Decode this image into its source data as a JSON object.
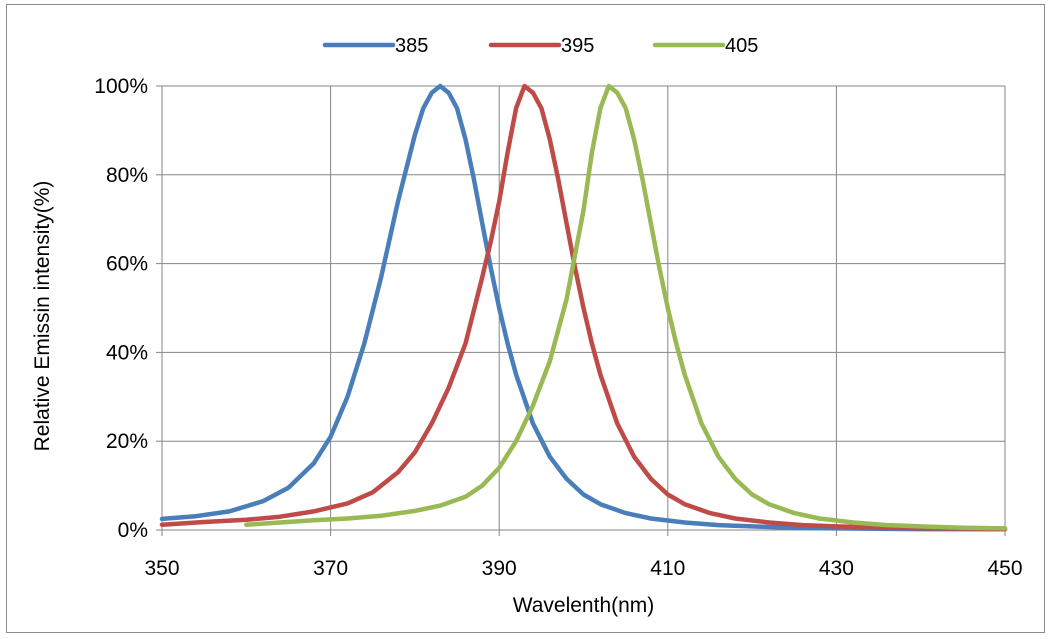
{
  "chart_data": {
    "type": "line",
    "title": "",
    "xlabel": "Wavelenth(nm)",
    "ylabel": "Relative Emissin intensity(%)",
    "xlim": [
      350,
      450
    ],
    "ylim": [
      0,
      100
    ],
    "x_ticks": [
      350,
      370,
      390,
      410,
      430,
      450
    ],
    "x_tick_labels": [
      "350",
      "370",
      "390",
      "410",
      "430",
      "450"
    ],
    "y_ticks": [
      0,
      20,
      40,
      60,
      80,
      100
    ],
    "y_tick_labels": [
      "0%",
      "20%",
      "40%",
      "60%",
      "80%",
      "100%"
    ],
    "grid": true,
    "legend_position": "top",
    "series": [
      {
        "name": "385",
        "color": "#4a7ebb",
        "points": [
          [
            350,
            2.5
          ],
          [
            354,
            3.1
          ],
          [
            358,
            4.2
          ],
          [
            362,
            6.5
          ],
          [
            365,
            9.5
          ],
          [
            368,
            15
          ],
          [
            370,
            21
          ],
          [
            372,
            30
          ],
          [
            374,
            42
          ],
          [
            376,
            57
          ],
          [
            378,
            74
          ],
          [
            380,
            89
          ],
          [
            381,
            95
          ],
          [
            382,
            98.5
          ],
          [
            383,
            100
          ],
          [
            384,
            98.5
          ],
          [
            385,
            95
          ],
          [
            386,
            88
          ],
          [
            387,
            79
          ],
          [
            388,
            69
          ],
          [
            389,
            59
          ],
          [
            390,
            50
          ],
          [
            391,
            42
          ],
          [
            392,
            35
          ],
          [
            394,
            24
          ],
          [
            396,
            16.5
          ],
          [
            398,
            11.5
          ],
          [
            400,
            8
          ],
          [
            402,
            5.8
          ],
          [
            405,
            3.8
          ],
          [
            408,
            2.6
          ],
          [
            412,
            1.7
          ],
          [
            416,
            1.1
          ],
          [
            420,
            0.8
          ],
          [
            425,
            0.5
          ],
          [
            430,
            0.35
          ],
          [
            440,
            0.2
          ],
          [
            450,
            0.15
          ]
        ]
      },
      {
        "name": "395",
        "color": "#be4b48",
        "points": [
          [
            350,
            1.2
          ],
          [
            355,
            1.8
          ],
          [
            360,
            2.3
          ],
          [
            364,
            3
          ],
          [
            368,
            4.2
          ],
          [
            372,
            6
          ],
          [
            375,
            8.5
          ],
          [
            378,
            13
          ],
          [
            380,
            17.5
          ],
          [
            382,
            24
          ],
          [
            384,
            32
          ],
          [
            386,
            42
          ],
          [
            388,
            57
          ],
          [
            389,
            65
          ],
          [
            390,
            74
          ],
          [
            391,
            85
          ],
          [
            392,
            95
          ],
          [
            393,
            100
          ],
          [
            394,
            98.5
          ],
          [
            395,
            95
          ],
          [
            396,
            88
          ],
          [
            397,
            79
          ],
          [
            398,
            69
          ],
          [
            399,
            59
          ],
          [
            400,
            50
          ],
          [
            401,
            42
          ],
          [
            402,
            35
          ],
          [
            404,
            24
          ],
          [
            406,
            16.5
          ],
          [
            408,
            11.5
          ],
          [
            410,
            8
          ],
          [
            412,
            5.8
          ],
          [
            415,
            3.8
          ],
          [
            418,
            2.6
          ],
          [
            422,
            1.7
          ],
          [
            426,
            1.1
          ],
          [
            430,
            0.8
          ],
          [
            436,
            0.5
          ],
          [
            443,
            0.35
          ],
          [
            450,
            0.25
          ]
        ]
      },
      {
        "name": "405",
        "color": "#98b954",
        "points": [
          [
            360,
            1.2
          ],
          [
            364,
            1.7
          ],
          [
            368,
            2.2
          ],
          [
            372,
            2.6
          ],
          [
            376,
            3.2
          ],
          [
            380,
            4.3
          ],
          [
            383,
            5.5
          ],
          [
            386,
            7.5
          ],
          [
            388,
            10
          ],
          [
            390,
            14
          ],
          [
            392,
            20
          ],
          [
            394,
            28
          ],
          [
            396,
            38
          ],
          [
            398,
            52
          ],
          [
            400,
            72
          ],
          [
            401,
            85
          ],
          [
            402,
            95
          ],
          [
            403,
            100
          ],
          [
            404,
            98.5
          ],
          [
            405,
            95
          ],
          [
            406,
            88
          ],
          [
            407,
            79
          ],
          [
            408,
            69
          ],
          [
            409,
            59
          ],
          [
            410,
            50
          ],
          [
            411,
            42
          ],
          [
            412,
            35
          ],
          [
            414,
            24
          ],
          [
            416,
            16.5
          ],
          [
            418,
            11.5
          ],
          [
            420,
            8
          ],
          [
            422,
            5.8
          ],
          [
            425,
            3.8
          ],
          [
            428,
            2.6
          ],
          [
            432,
            1.7
          ],
          [
            436,
            1.1
          ],
          [
            440,
            0.8
          ],
          [
            445,
            0.5
          ],
          [
            450,
            0.35
          ]
        ]
      }
    ]
  }
}
